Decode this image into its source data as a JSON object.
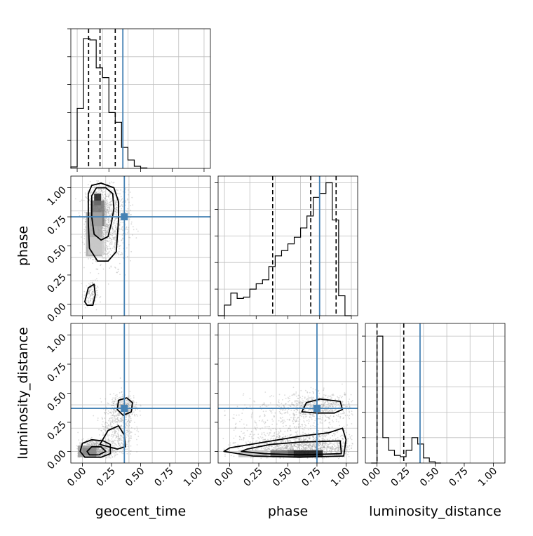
{
  "chart_data": {
    "type": "corner",
    "parameters": [
      "geocent_time",
      "phase",
      "luminosity_distance"
    ],
    "truths": {
      "geocent_time": 0.36,
      "phase": 0.75,
      "luminosity_distance": 0.37
    },
    "colors": {
      "truth": "#4682b4",
      "hist": "#000000",
      "grid": "#bfbfbf",
      "points": "#999999"
    },
    "ticks": [
      "0.00",
      "0.25",
      "0.50",
      "0.75",
      "1.00"
    ],
    "grid": true,
    "panels": [
      {
        "kind": "hist",
        "param": "geocent_time",
        "xlim": [
          -0.05,
          1.05
        ],
        "bin_edges": [
          -0.05,
          0.0,
          0.05,
          0.1,
          0.15,
          0.2,
          0.25,
          0.3,
          0.35,
          0.4,
          0.45,
          0.5,
          0.55
        ],
        "counts": [
          0.01,
          0.43,
          0.93,
          0.92,
          0.72,
          0.65,
          0.4,
          0.33,
          0.15,
          0.06,
          0.015,
          0.003
        ],
        "quantiles": [
          0.09,
          0.18,
          0.3
        ],
        "ymax": 1.0
      },
      {
        "kind": "hist",
        "param": "phase",
        "xlim": [
          -0.05,
          1.05
        ],
        "bin_edges": [
          -0.05,
          0.0,
          0.05,
          0.1,
          0.15,
          0.2,
          0.25,
          0.3,
          0.35,
          0.4,
          0.45,
          0.5,
          0.55,
          0.6,
          0.65,
          0.7,
          0.75,
          0.8,
          0.85,
          0.9,
          0.95,
          1.0
        ],
        "counts": [
          0.0,
          0.08,
          0.17,
          0.13,
          0.14,
          0.2,
          0.24,
          0.27,
          0.37,
          0.45,
          0.49,
          0.54,
          0.59,
          0.66,
          0.75,
          0.89,
          0.92,
          1.0,
          0.72,
          0.15,
          0.0
        ],
        "quantiles": [
          0.38,
          0.68,
          0.88
        ],
        "ymax": 1.05
      },
      {
        "kind": "hist",
        "param": "luminosity_distance",
        "xlim": [
          -0.1,
          1.1
        ],
        "bin_edges": [
          -0.05,
          0.0,
          0.05,
          0.1,
          0.15,
          0.2,
          0.25,
          0.3,
          0.35,
          0.4,
          0.45,
          0.5,
          0.55
        ],
        "counts": [
          0.0,
          1.0,
          0.2,
          0.1,
          0.06,
          0.05,
          0.1,
          0.2,
          0.15,
          0.04,
          0.01,
          0.0
        ],
        "quantiles": [
          0.0,
          0.23
        ],
        "ymax": 1.1
      },
      {
        "kind": "2d",
        "x": "geocent_time",
        "y": "phase",
        "xlim": [
          -0.1,
          1.1
        ],
        "ylim": [
          -0.1,
          1.1
        ],
        "blobs": [
          {
            "cx": 0.15,
            "cy": 0.72,
            "sx": 0.06,
            "sy": 0.16,
            "n": 1100
          },
          {
            "cx": 0.3,
            "cy": 0.7,
            "sx": 0.06,
            "sy": 0.18,
            "n": 380
          },
          {
            "cx": 0.07,
            "cy": 0.08,
            "sx": 0.03,
            "sy": 0.06,
            "n": 120
          }
        ],
        "density": [
          {
            "x": 0.13,
            "y": 0.9,
            "w": 0.06,
            "h": 0.1,
            "level": 0.9
          },
          {
            "x": 0.13,
            "y": 0.78,
            "w": 0.12,
            "h": 0.22,
            "level": 0.55
          },
          {
            "x": 0.1,
            "y": 0.6,
            "w": 0.14,
            "h": 0.38,
            "level": 0.35
          },
          {
            "x": 0.12,
            "y": 0.5,
            "w": 0.14,
            "h": 0.15,
            "level": 0.2
          }
        ],
        "contours": [
          [
            [
              0.05,
              0.95
            ],
            [
              0.08,
              1.02
            ],
            [
              0.16,
              1.04
            ],
            [
              0.27,
              1.0
            ],
            [
              0.31,
              0.88
            ],
            [
              0.31,
              0.72
            ],
            [
              0.3,
              0.58
            ],
            [
              0.29,
              0.45
            ],
            [
              0.22,
              0.37
            ],
            [
              0.13,
              0.37
            ],
            [
              0.06,
              0.48
            ],
            [
              0.05,
              0.7
            ],
            [
              0.05,
              0.95
            ]
          ],
          [
            [
              0.08,
              0.93
            ],
            [
              0.12,
              1.0
            ],
            [
              0.2,
              1.0
            ],
            [
              0.26,
              0.95
            ],
            [
              0.27,
              0.82
            ],
            [
              0.25,
              0.7
            ],
            [
              0.22,
              0.58
            ],
            [
              0.16,
              0.55
            ],
            [
              0.1,
              0.6
            ],
            [
              0.08,
              0.75
            ],
            [
              0.08,
              0.93
            ]
          ],
          [
            [
              0.02,
              0.02
            ],
            [
              0.05,
              0.14
            ],
            [
              0.1,
              0.17
            ],
            [
              0.11,
              0.08
            ],
            [
              0.09,
              -0.01
            ],
            [
              0.04,
              -0.01
            ],
            [
              0.02,
              0.02
            ]
          ]
        ]
      },
      {
        "kind": "2d",
        "x": "geocent_time",
        "y": "luminosity_distance",
        "xlim": [
          -0.1,
          1.1
        ],
        "ylim": [
          -0.1,
          1.1
        ],
        "blobs": [
          {
            "cx": 0.12,
            "cy": 0.02,
            "sx": 0.08,
            "sy": 0.04,
            "n": 650
          },
          {
            "cx": 0.3,
            "cy": 0.2,
            "sx": 0.07,
            "sy": 0.12,
            "n": 450
          },
          {
            "cx": 0.36,
            "cy": 0.38,
            "sx": 0.06,
            "sy": 0.05,
            "n": 300
          }
        ],
        "density": [
          {
            "x": 0.06,
            "y": 0.0,
            "w": 0.12,
            "h": 0.06,
            "level": 0.9
          },
          {
            "x": 0.04,
            "y": 0.0,
            "w": 0.16,
            "h": 0.1,
            "level": 0.4
          }
        ],
        "contours": [
          [
            [
              -0.02,
              0.0
            ],
            [
              0.0,
              0.07
            ],
            [
              0.08,
              0.1
            ],
            [
              0.18,
              0.09
            ],
            [
              0.24,
              0.06
            ],
            [
              0.24,
              -0.02
            ],
            [
              0.16,
              -0.05
            ],
            [
              0.02,
              -0.05
            ],
            [
              -0.02,
              0.0
            ]
          ],
          [
            [
              0.04,
              0.0
            ],
            [
              0.08,
              0.04
            ],
            [
              0.16,
              0.04
            ],
            [
              0.2,
              0.0
            ],
            [
              0.14,
              -0.03
            ],
            [
              0.06,
              -0.03
            ],
            [
              0.04,
              0.0
            ]
          ],
          [
            [
              0.15,
              0.06
            ],
            [
              0.22,
              0.18
            ],
            [
              0.31,
              0.22
            ],
            [
              0.36,
              0.14
            ],
            [
              0.37,
              0.04
            ],
            [
              0.3,
              0.02
            ],
            [
              0.15,
              0.06
            ]
          ],
          [
            [
              0.3,
              0.36
            ],
            [
              0.31,
              0.44
            ],
            [
              0.38,
              0.46
            ],
            [
              0.43,
              0.42
            ],
            [
              0.42,
              0.34
            ],
            [
              0.35,
              0.31
            ],
            [
              0.3,
              0.36
            ]
          ]
        ]
      },
      {
        "kind": "2d",
        "x": "phase",
        "y": "luminosity_distance",
        "xlim": [
          -0.1,
          1.1
        ],
        "ylim": [
          -0.1,
          1.1
        ],
        "blobs": [
          {
            "cx": 0.65,
            "cy": 0.03,
            "sx": 0.25,
            "sy": 0.06,
            "n": 1400
          },
          {
            "cx": 0.75,
            "cy": 0.38,
            "sx": 0.18,
            "sy": 0.06,
            "n": 600
          },
          {
            "cx": 0.45,
            "cy": 0.2,
            "sx": 0.3,
            "sy": 0.12,
            "n": 400
          }
        ],
        "density": [
          {
            "x": 0.65,
            "y": -0.02,
            "w": 0.3,
            "h": 0.06,
            "level": 0.95
          },
          {
            "x": 0.45,
            "y": -0.02,
            "w": 0.2,
            "h": 0.06,
            "level": 0.6
          },
          {
            "x": 0.2,
            "y": -0.02,
            "w": 0.25,
            "h": 0.06,
            "level": 0.25
          }
        ],
        "contours": [
          [
            [
              -0.05,
              0.0
            ],
            [
              0.0,
              0.03
            ],
            [
              0.3,
              0.08
            ],
            [
              0.6,
              0.13
            ],
            [
              0.85,
              0.16
            ],
            [
              0.97,
              0.2
            ],
            [
              1.0,
              0.1
            ],
            [
              0.98,
              -0.04
            ],
            [
              0.6,
              -0.05
            ],
            [
              0.2,
              -0.04
            ],
            [
              -0.05,
              0.0
            ]
          ],
          [
            [
              0.1,
              0.0
            ],
            [
              0.15,
              0.02
            ],
            [
              0.35,
              0.06
            ],
            [
              0.6,
              0.08
            ],
            [
              0.95,
              0.09
            ],
            [
              0.96,
              -0.02
            ],
            [
              0.6,
              -0.03
            ],
            [
              0.3,
              -0.02
            ],
            [
              0.1,
              0.0
            ]
          ],
          [
            [
              0.62,
              0.34
            ],
            [
              0.66,
              0.42
            ],
            [
              0.78,
              0.45
            ],
            [
              0.95,
              0.43
            ],
            [
              0.97,
              0.36
            ],
            [
              0.9,
              0.33
            ],
            [
              0.75,
              0.33
            ],
            [
              0.62,
              0.34
            ]
          ]
        ]
      }
    ]
  }
}
